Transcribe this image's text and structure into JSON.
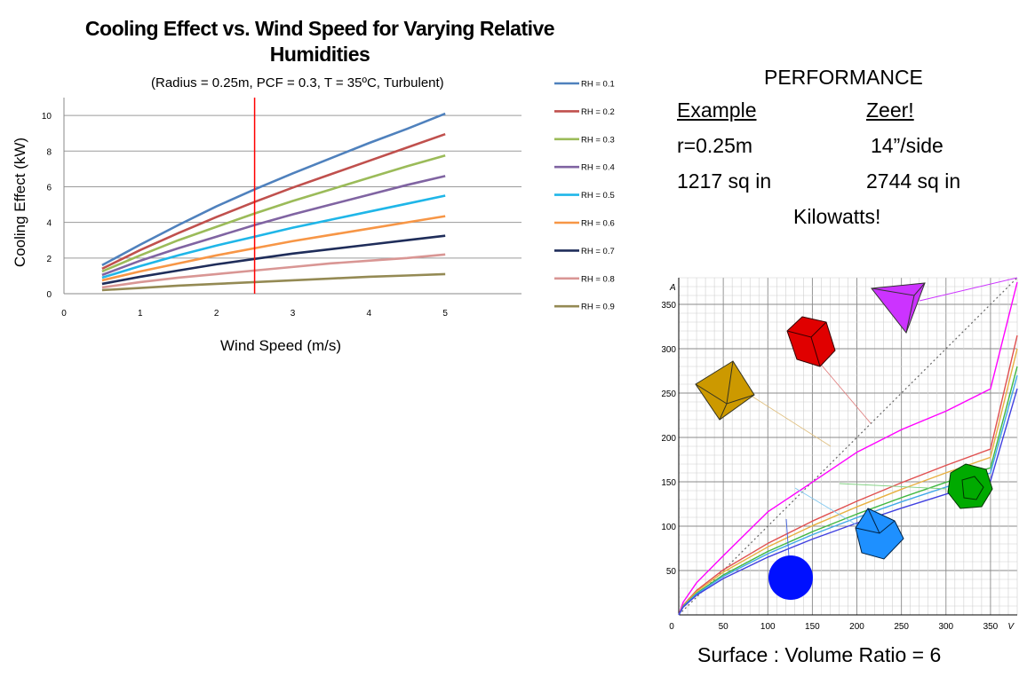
{
  "chart_data": [
    {
      "type": "line",
      "title": "Cooling Effect vs. Wind Speed for Varying Relative Humidities",
      "subtitle": "(Radius = 0.25m, PCF = 0.3, T = 35ºC, Turbulent)",
      "xlabel": "Wind Speed (m/s)",
      "ylabel": "Cooling Effect (kW)",
      "xlim": [
        0,
        6
      ],
      "ylim": [
        0,
        11
      ],
      "xticks": [
        "0",
        "1",
        "2",
        "3",
        "4",
        "5"
      ],
      "yticks": [
        "0",
        "2",
        "4",
        "6",
        "8",
        "10"
      ],
      "grid": "horizontal",
      "legend_position": "right",
      "x": [
        0.5,
        1,
        1.5,
        2,
        2.5,
        3,
        3.5,
        4,
        4.5,
        5
      ],
      "series": [
        {
          "name": "RH = 0.1",
          "color": "#4f81bd",
          "values": [
            1.6,
            2.75,
            3.85,
            4.9,
            5.85,
            6.75,
            7.6,
            8.45,
            9.25,
            10.1
          ]
        },
        {
          "name": "RH = 0.2",
          "color": "#c0504d",
          "values": [
            1.4,
            2.45,
            3.4,
            4.3,
            5.15,
            5.95,
            6.7,
            7.45,
            8.2,
            8.95
          ]
        },
        {
          "name": "RH = 0.3",
          "color": "#9bbb59",
          "values": [
            1.25,
            2.15,
            3.0,
            3.75,
            4.5,
            5.2,
            5.85,
            6.5,
            7.15,
            7.75
          ]
        },
        {
          "name": "RH = 0.4",
          "color": "#8064a2",
          "values": [
            1.05,
            1.85,
            2.55,
            3.2,
            3.85,
            4.45,
            5.0,
            5.55,
            6.1,
            6.6
          ]
        },
        {
          "name": "RH = 0.5",
          "color": "#1fb6e8",
          "values": [
            0.9,
            1.55,
            2.15,
            2.7,
            3.2,
            3.7,
            4.15,
            4.6,
            5.05,
            5.5
          ]
        },
        {
          "name": "RH = 0.6",
          "color": "#f79646",
          "values": [
            0.75,
            1.25,
            1.7,
            2.15,
            2.55,
            2.95,
            3.3,
            3.65,
            4.0,
            4.35
          ]
        },
        {
          "name": "RH = 0.7",
          "color": "#1f2d5a",
          "values": [
            0.55,
            0.95,
            1.3,
            1.65,
            1.95,
            2.25,
            2.5,
            2.75,
            3.0,
            3.25
          ]
        },
        {
          "name": "RH = 0.8",
          "color": "#d99694",
          "values": [
            0.35,
            0.65,
            0.9,
            1.1,
            1.3,
            1.5,
            1.7,
            1.85,
            2.0,
            2.2
          ]
        },
        {
          "name": "RH = 0.9",
          "color": "#948a54",
          "values": [
            0.2,
            0.32,
            0.45,
            0.55,
            0.65,
            0.75,
            0.85,
            0.95,
            1.02,
            1.1
          ]
        }
      ],
      "annotations": [
        {
          "type": "vertical-line",
          "x": 2.5,
          "color": "#ff0000"
        }
      ]
    },
    {
      "type": "line",
      "xlabel": "V",
      "ylabel": "A",
      "xlim": [
        0,
        380
      ],
      "ylim": [
        0,
        380
      ],
      "xticks": [
        "0",
        "50",
        "100",
        "150",
        "200",
        "250",
        "300",
        "350"
      ],
      "yticks": [
        "50",
        "100",
        "150",
        "200",
        "250",
        "300",
        "350"
      ],
      "grid": "on",
      "x": [
        0,
        5,
        20,
        50,
        100,
        150,
        200,
        250,
        300,
        350,
        380
      ],
      "series": [
        {
          "color": "#ff00ff",
          "values": [
            0,
            14.36,
            36.18,
            66.67,
            116.16,
            149.57,
            183.33,
            208.8,
            229.6,
            254.7,
            375
          ]
        },
        {
          "color": "#e05050",
          "values": [
            0,
            10.93,
            27.55,
            50.76,
            80.58,
            105.68,
            128.14,
            148.96,
            168.47,
            186.93,
            315.0
          ]
        },
        {
          "color": "#e8b040",
          "values": [
            0,
            10.39,
            26.18,
            48.24,
            76.57,
            100.43,
            121.79,
            141.57,
            160.1,
            177.65,
            300.0
          ]
        },
        {
          "color": "#40b840",
          "values": [
            0,
            9.69,
            24.43,
            45.02,
            71.46,
            93.72,
            113.66,
            132.12,
            149.42,
            165.79,
            280.0
          ]
        },
        {
          "color": "#40a8e8",
          "values": [
            0,
            9.35,
            23.56,
            43.41,
            68.91,
            90.37,
            109.6,
            127.41,
            144.09,
            159.88,
            270.0
          ]
        },
        {
          "color": "#4040e0",
          "values": [
            0,
            8.83,
            22.26,
            41.0,
            65.08,
            85.36,
            103.52,
            120.33,
            136.08,
            151.0,
            255.0
          ]
        }
      ],
      "reference_line": {
        "type": "dotted-diagonal",
        "color": "#666666"
      },
      "annotations": [
        {
          "label": "tetrahedron-icon",
          "color": "#cc33ff"
        },
        {
          "label": "cube-icon",
          "color": "#e00000"
        },
        {
          "label": "octahedron-icon",
          "color": "#cc9900"
        },
        {
          "label": "dodecahedron-icon",
          "color": "#00aa00"
        },
        {
          "label": "icosahedron-icon",
          "color": "#1e90ff"
        },
        {
          "label": "sphere-icon",
          "color": "#0010ff"
        }
      ],
      "caption": "Surface : Volume Ratio = 6"
    }
  ],
  "performance": {
    "title": "PERFORMANCE",
    "col1_header": "Example",
    "col2_header": "Zeer!",
    "row1": [
      "r=0.25m",
      "14”/side"
    ],
    "row2": [
      "1217 sq in",
      "2744 sq in"
    ],
    "note": "Kilowatts!"
  }
}
